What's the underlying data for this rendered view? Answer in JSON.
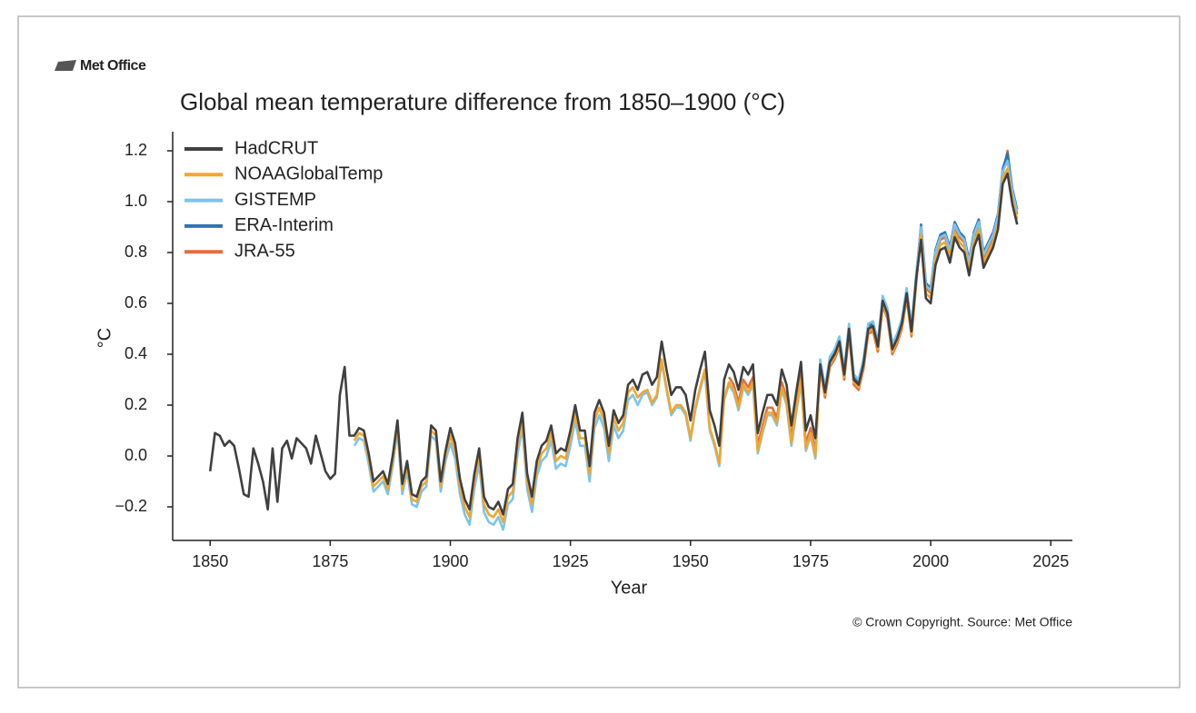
{
  "logo": "Met Office",
  "chart_data": {
    "type": "line",
    "title": "Global mean temperature difference from 1850–1900 (°C)",
    "xlabel": "Year",
    "ylabel": "°C",
    "source": "© Crown Copyright. Source: Met Office",
    "xlim": [
      1842.2,
      2029.5
    ],
    "ylim": [
      -0.332,
      1.275
    ],
    "xticks": [
      1850,
      1875,
      1900,
      1925,
      1950,
      1975,
      2000,
      2025
    ],
    "yticks": [
      {
        "value": -0.2,
        "label": "−0.2"
      },
      {
        "value": 0,
        "label": "0.0"
      },
      0.2,
      0.4,
      0.6,
      0.8,
      {
        "value": 1,
        "label": "1.0"
      },
      1.2
    ],
    "grid": false,
    "legend": "upper left",
    "x": [
      1850,
      1851,
      1852,
      1853,
      1854,
      1855,
      1856,
      1857,
      1858,
      1859,
      1860,
      1861,
      1862,
      1863,
      1864,
      1865,
      1866,
      1867,
      1868,
      1869,
      1870,
      1871,
      1872,
      1873,
      1874,
      1875,
      1876,
      1877,
      1878,
      1879,
      1880,
      1881,
      1882,
      1883,
      1884,
      1885,
      1886,
      1887,
      1888,
      1889,
      1890,
      1891,
      1892,
      1893,
      1894,
      1895,
      1896,
      1897,
      1898,
      1899,
      1900,
      1901,
      1902,
      1903,
      1904,
      1905,
      1906,
      1907,
      1908,
      1909,
      1910,
      1911,
      1912,
      1913,
      1914,
      1915,
      1916,
      1917,
      1918,
      1919,
      1920,
      1921,
      1922,
      1923,
      1924,
      1925,
      1926,
      1927,
      1928,
      1929,
      1930,
      1931,
      1932,
      1933,
      1934,
      1935,
      1936,
      1937,
      1938,
      1939,
      1940,
      1941,
      1942,
      1943,
      1944,
      1945,
      1946,
      1947,
      1948,
      1949,
      1950,
      1951,
      1952,
      1953,
      1954,
      1955,
      1956,
      1957,
      1958,
      1959,
      1960,
      1961,
      1962,
      1963,
      1964,
      1965,
      1966,
      1967,
      1968,
      1969,
      1970,
      1971,
      1972,
      1973,
      1974,
      1975,
      1976,
      1977,
      1978,
      1979,
      1980,
      1981,
      1982,
      1983,
      1984,
      1985,
      1986,
      1987,
      1988,
      1989,
      1990,
      1991,
      1992,
      1993,
      1994,
      1995,
      1996,
      1997,
      1998,
      1999,
      2000,
      2001,
      2002,
      2003,
      2004,
      2005,
      2006,
      2007,
      2008,
      2009,
      2010,
      2011,
      2012,
      2013,
      2014,
      2015,
      2016,
      2017,
      2018
    ],
    "series": [
      {
        "name": "HadCRUT",
        "color": "#404040",
        "values": [
          -0.06,
          0.09,
          0.08,
          0.04,
          0.06,
          0.04,
          -0.05,
          -0.15,
          -0.16,
          0.03,
          -0.03,
          -0.1,
          -0.21,
          0.03,
          -0.18,
          0.03,
          0.06,
          -0.01,
          0.07,
          0.05,
          0.03,
          -0.03,
          0.08,
          0.01,
          -0.06,
          -0.09,
          -0.07,
          0.24,
          0.35,
          0.08,
          0.08,
          0.11,
          0.1,
          0.01,
          -0.1,
          -0.08,
          -0.06,
          -0.11,
          0.0,
          0.14,
          -0.11,
          -0.02,
          -0.15,
          -0.16,
          -0.1,
          -0.08,
          0.12,
          0.1,
          -0.1,
          0.02,
          0.11,
          0.05,
          -0.09,
          -0.17,
          -0.21,
          -0.07,
          0.03,
          -0.16,
          -0.2,
          -0.21,
          -0.18,
          -0.23,
          -0.13,
          -0.11,
          0.07,
          0.17,
          -0.07,
          -0.16,
          -0.02,
          0.04,
          0.06,
          0.12,
          0.01,
          0.03,
          0.02,
          0.1,
          0.2,
          0.1,
          0.1,
          -0.04,
          0.17,
          0.22,
          0.17,
          0.04,
          0.18,
          0.13,
          0.16,
          0.28,
          0.3,
          0.26,
          0.32,
          0.33,
          0.28,
          0.31,
          0.45,
          0.34,
          0.24,
          0.27,
          0.27,
          0.24,
          0.14,
          0.26,
          0.34,
          0.41,
          0.18,
          0.12,
          0.04,
          0.3,
          0.36,
          0.33,
          0.26,
          0.35,
          0.32,
          0.36,
          0.09,
          0.17,
          0.24,
          0.24,
          0.2,
          0.34,
          0.28,
          0.12,
          0.25,
          0.37,
          0.1,
          0.16,
          0.07,
          0.36,
          0.25,
          0.37,
          0.4,
          0.45,
          0.32,
          0.5,
          0.3,
          0.28,
          0.36,
          0.5,
          0.51,
          0.43,
          0.61,
          0.56,
          0.42,
          0.46,
          0.52,
          0.64,
          0.49,
          0.7,
          0.85,
          0.62,
          0.6,
          0.75,
          0.81,
          0.82,
          0.76,
          0.86,
          0.82,
          0.8,
          0.71,
          0.82,
          0.87,
          0.74,
          0.78,
          0.82,
          0.89,
          1.07,
          1.11,
          0.99,
          0.91
        ]
      },
      {
        "name": "NOAAGlobalTemp",
        "color": "#f0a630",
        "values": [
          null,
          null,
          null,
          null,
          null,
          null,
          null,
          null,
          null,
          null,
          null,
          null,
          null,
          null,
          null,
          null,
          null,
          null,
          null,
          null,
          null,
          null,
          null,
          null,
          null,
          null,
          null,
          null,
          null,
          null,
          0.06,
          0.09,
          0.08,
          -0.01,
          -0.12,
          -0.1,
          -0.08,
          -0.13,
          -0.02,
          0.12,
          -0.13,
          -0.04,
          -0.17,
          -0.18,
          -0.12,
          -0.1,
          0.1,
          0.08,
          -0.12,
          0.0,
          0.08,
          0.02,
          -0.12,
          -0.2,
          -0.24,
          -0.1,
          0.0,
          -0.19,
          -0.23,
          -0.24,
          -0.21,
          -0.26,
          -0.16,
          -0.14,
          0.04,
          0.14,
          -0.1,
          -0.19,
          -0.05,
          0.01,
          0.03,
          0.09,
          -0.02,
          0.0,
          -0.01,
          0.07,
          0.17,
          0.07,
          0.07,
          -0.07,
          0.14,
          0.19,
          0.14,
          0.01,
          0.15,
          0.1,
          0.13,
          0.25,
          0.27,
          0.23,
          0.25,
          0.26,
          0.21,
          0.24,
          0.38,
          0.27,
          0.17,
          0.2,
          0.2,
          0.17,
          0.07,
          0.19,
          0.27,
          0.34,
          0.11,
          0.05,
          -0.03,
          0.23,
          0.29,
          0.26,
          0.19,
          0.28,
          0.25,
          0.29,
          0.02,
          0.1,
          0.17,
          0.17,
          0.13,
          0.27,
          0.21,
          0.05,
          0.18,
          0.3,
          0.03,
          0.09,
          0.0,
          0.35,
          0.24,
          0.36,
          0.39,
          0.44,
          0.31,
          0.49,
          0.29,
          0.27,
          0.35,
          0.49,
          0.5,
          0.42,
          0.6,
          0.55,
          0.41,
          0.45,
          0.51,
          0.63,
          0.48,
          0.69,
          0.87,
          0.64,
          0.62,
          0.77,
          0.83,
          0.84,
          0.78,
          0.88,
          0.84,
          0.82,
          0.73,
          0.84,
          0.89,
          0.76,
          0.8,
          0.84,
          0.91,
          1.09,
          1.13,
          1.01,
          0.93
        ]
      },
      {
        "name": "GISTEMP",
        "color": "#7cc4ea",
        "values": [
          null,
          null,
          null,
          null,
          null,
          null,
          null,
          null,
          null,
          null,
          null,
          null,
          null,
          null,
          null,
          null,
          null,
          null,
          null,
          null,
          null,
          null,
          null,
          null,
          null,
          null,
          null,
          null,
          null,
          null,
          0.04,
          0.07,
          0.06,
          -0.03,
          -0.14,
          -0.12,
          -0.1,
          -0.15,
          -0.04,
          0.1,
          -0.15,
          -0.06,
          -0.19,
          -0.2,
          -0.14,
          -0.12,
          0.08,
          0.06,
          -0.14,
          -0.02,
          0.05,
          -0.01,
          -0.15,
          -0.23,
          -0.27,
          -0.13,
          -0.03,
          -0.22,
          -0.26,
          -0.27,
          -0.24,
          -0.29,
          -0.19,
          -0.17,
          0.01,
          0.11,
          -0.13,
          -0.22,
          -0.08,
          -0.02,
          0.0,
          0.06,
          -0.05,
          -0.03,
          -0.04,
          0.04,
          0.14,
          0.04,
          0.04,
          -0.1,
          0.11,
          0.16,
          0.11,
          -0.02,
          0.12,
          0.07,
          0.1,
          0.22,
          0.24,
          0.2,
          0.24,
          0.25,
          0.2,
          0.23,
          0.37,
          0.26,
          0.16,
          0.19,
          0.19,
          0.16,
          0.06,
          0.18,
          0.26,
          0.33,
          0.1,
          0.04,
          -0.04,
          0.22,
          0.28,
          0.25,
          0.18,
          0.27,
          0.24,
          0.28,
          0.01,
          0.09,
          0.16,
          0.16,
          0.12,
          0.26,
          0.2,
          0.04,
          0.17,
          0.29,
          0.02,
          0.08,
          -0.01,
          0.38,
          0.27,
          0.39,
          0.42,
          0.47,
          0.34,
          0.52,
          0.32,
          0.3,
          0.38,
          0.52,
          0.53,
          0.45,
          0.63,
          0.58,
          0.44,
          0.48,
          0.54,
          0.66,
          0.51,
          0.72,
          0.9,
          0.67,
          0.65,
          0.8,
          0.86,
          0.87,
          0.81,
          0.91,
          0.87,
          0.85,
          0.76,
          0.87,
          0.92,
          0.79,
          0.83,
          0.87,
          0.94,
          1.12,
          1.16,
          1.04,
          0.96
        ]
      },
      {
        "name": "ERA-Interim",
        "color": "#2f73b8",
        "values": [
          null,
          null,
          null,
          null,
          null,
          null,
          null,
          null,
          null,
          null,
          null,
          null,
          null,
          null,
          null,
          null,
          null,
          null,
          null,
          null,
          null,
          null,
          null,
          null,
          null,
          null,
          null,
          null,
          null,
          null,
          null,
          null,
          null,
          null,
          null,
          null,
          null,
          null,
          null,
          null,
          null,
          null,
          null,
          null,
          null,
          null,
          null,
          null,
          null,
          null,
          null,
          null,
          null,
          null,
          null,
          null,
          null,
          null,
          null,
          null,
          null,
          null,
          null,
          null,
          null,
          null,
          null,
          null,
          null,
          null,
          null,
          null,
          null,
          null,
          null,
          null,
          null,
          null,
          null,
          null,
          null,
          null,
          null,
          null,
          null,
          null,
          null,
          null,
          null,
          null,
          null,
          null,
          null,
          null,
          null,
          null,
          null,
          null,
          null,
          null,
          null,
          null,
          null,
          null,
          null,
          null,
          null,
          null,
          null,
          null,
          null,
          null,
          null,
          null,
          null,
          null,
          null,
          null,
          null,
          null,
          null,
          null,
          null,
          null,
          null,
          null,
          null,
          null,
          null,
          0.38,
          0.41,
          0.46,
          0.33,
          0.51,
          0.31,
          0.29,
          0.37,
          0.51,
          0.52,
          0.44,
          0.62,
          0.57,
          0.43,
          0.47,
          0.53,
          0.65,
          0.5,
          0.71,
          0.91,
          0.68,
          0.66,
          0.81,
          0.87,
          0.88,
          0.82,
          0.92,
          0.88,
          0.86,
          0.77,
          0.88,
          0.93,
          0.8,
          0.84,
          0.88,
          0.95,
          1.13,
          1.19,
          1.05,
          0.97
        ]
      },
      {
        "name": "JRA-55",
        "color": "#e0703a",
        "values": [
          null,
          null,
          null,
          null,
          null,
          null,
          null,
          null,
          null,
          null,
          null,
          null,
          null,
          null,
          null,
          null,
          null,
          null,
          null,
          null,
          null,
          null,
          null,
          null,
          null,
          null,
          null,
          null,
          null,
          null,
          null,
          null,
          null,
          null,
          null,
          null,
          null,
          null,
          null,
          null,
          null,
          null,
          null,
          null,
          null,
          null,
          null,
          null,
          null,
          null,
          null,
          null,
          null,
          null,
          null,
          null,
          null,
          null,
          null,
          null,
          null,
          null,
          null,
          null,
          null,
          null,
          null,
          null,
          null,
          null,
          null,
          null,
          null,
          null,
          null,
          null,
          null,
          null,
          null,
          null,
          null,
          null,
          null,
          null,
          null,
          null,
          null,
          null,
          null,
          null,
          null,
          null,
          null,
          null,
          null,
          null,
          null,
          null,
          null,
          null,
          null,
          null,
          null,
          null,
          null,
          null,
          null,
          null,
          0.31,
          0.28,
          0.21,
          0.3,
          0.27,
          0.31,
          0.04,
          0.12,
          0.19,
          0.19,
          0.15,
          0.29,
          0.23,
          0.07,
          0.2,
          0.32,
          0.05,
          0.11,
          0.02,
          0.34,
          0.23,
          0.35,
          0.38,
          0.43,
          0.3,
          0.48,
          0.28,
          0.26,
          0.34,
          0.48,
          0.49,
          0.41,
          0.59,
          0.54,
          0.4,
          0.44,
          0.5,
          0.62,
          0.47,
          0.68,
          0.89,
          0.66,
          0.64,
          0.79,
          0.85,
          0.86,
          0.8,
          0.9,
          0.86,
          0.84,
          0.75,
          0.86,
          0.91,
          0.78,
          0.82,
          0.86,
          0.93,
          1.11,
          1.2,
          1.03,
          0.95
        ]
      }
    ]
  }
}
